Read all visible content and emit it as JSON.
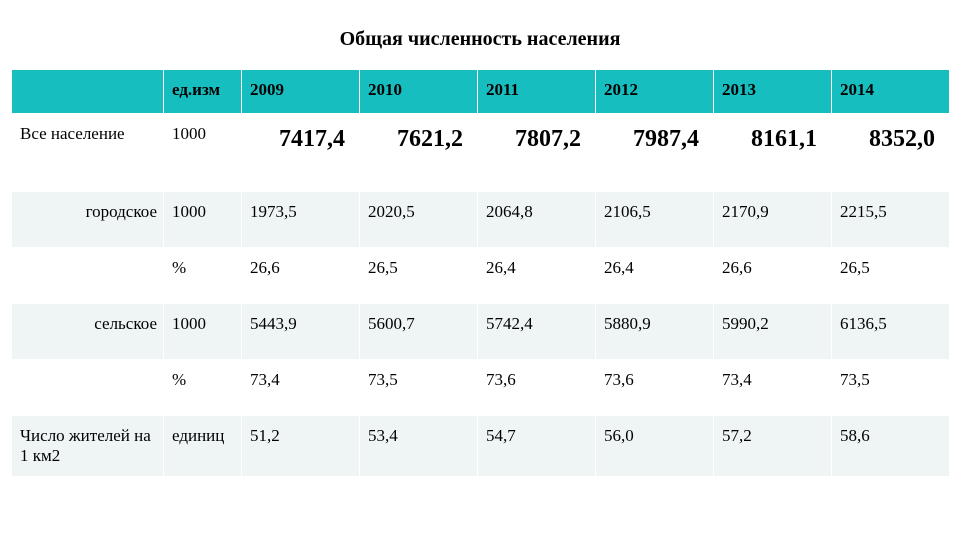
{
  "title": "Общая численность населения",
  "table": {
    "header_bg": "#17bec0",
    "alt_row_bg": "#eff5f5",
    "border_color": "#ffffff",
    "columns": [
      "",
      "ед.изм",
      "2009",
      "2010",
      "2011",
      "2012",
      "2013",
      "2014"
    ],
    "rows": [
      {
        "label": "Все население",
        "unit": "1000",
        "values": [
          "7417,4",
          "7621,2",
          "7807,2",
          "7987,4",
          "8161,1",
          "8352,0"
        ],
        "emph": true,
        "label_align": "left"
      },
      {
        "label": "городское",
        "unit": "1000",
        "values": [
          "1973,5",
          "2020,5",
          "2064,8",
          "2106,5",
          "2170,9",
          "2215,5"
        ],
        "label_align": "right",
        "shade": true
      },
      {
        "label": "",
        "unit": "%",
        "values": [
          "26,6",
          "26,5",
          "26,4",
          "26,4",
          "26,6",
          "26,5"
        ]
      },
      {
        "label": "сельское",
        "unit": "1000",
        "values": [
          "5443,9",
          "5600,7",
          "5742,4",
          "5880,9",
          "5990,2",
          "6136,5"
        ],
        "label_align": "right",
        "shade": true
      },
      {
        "label": "",
        "unit": "%",
        "values": [
          "73,4",
          "73,5",
          "73,6",
          "73,6",
          "73,4",
          "73,5"
        ]
      },
      {
        "label": "Число жителей на 1 км2",
        "unit": "единиц",
        "values": [
          "51,2",
          "53,4",
          "54,7",
          "56,0",
          "57,2",
          "58,6"
        ],
        "label_align": "left",
        "shade": true
      }
    ]
  }
}
